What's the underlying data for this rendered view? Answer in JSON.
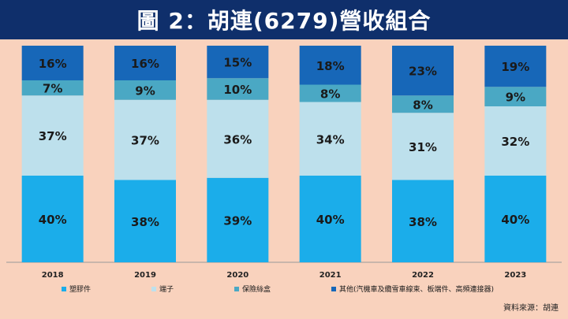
{
  "header": {
    "title": "圖 2：胡連(6279)營收組合"
  },
  "source": "資料來源：胡連",
  "chart_data": {
    "type": "bar",
    "stacked": true,
    "percent_stacked": true,
    "categories": [
      "2018",
      "2019",
      "2020",
      "2021",
      "2022",
      "2023"
    ],
    "series": [
      {
        "name": "塑膠件",
        "color": "#1badea",
        "values": [
          40,
          38,
          39,
          40,
          38,
          40
        ]
      },
      {
        "name": "端子",
        "color": "#bde0ec",
        "values": [
          37,
          37,
          36,
          34,
          31,
          32
        ]
      },
      {
        "name": "保險絲盒",
        "color": "#4aa8c4",
        "values": [
          7,
          9,
          10,
          8,
          8,
          9
        ]
      },
      {
        "name": "其他(汽機車及纜雪車線束、板端件、高頻連接器)",
        "color": "#1767b8",
        "values": [
          16,
          16,
          15,
          18,
          23,
          19
        ]
      }
    ],
    "ylim": [
      0,
      100
    ],
    "data_labels": true,
    "legend_position": "bottom",
    "grid": false
  }
}
